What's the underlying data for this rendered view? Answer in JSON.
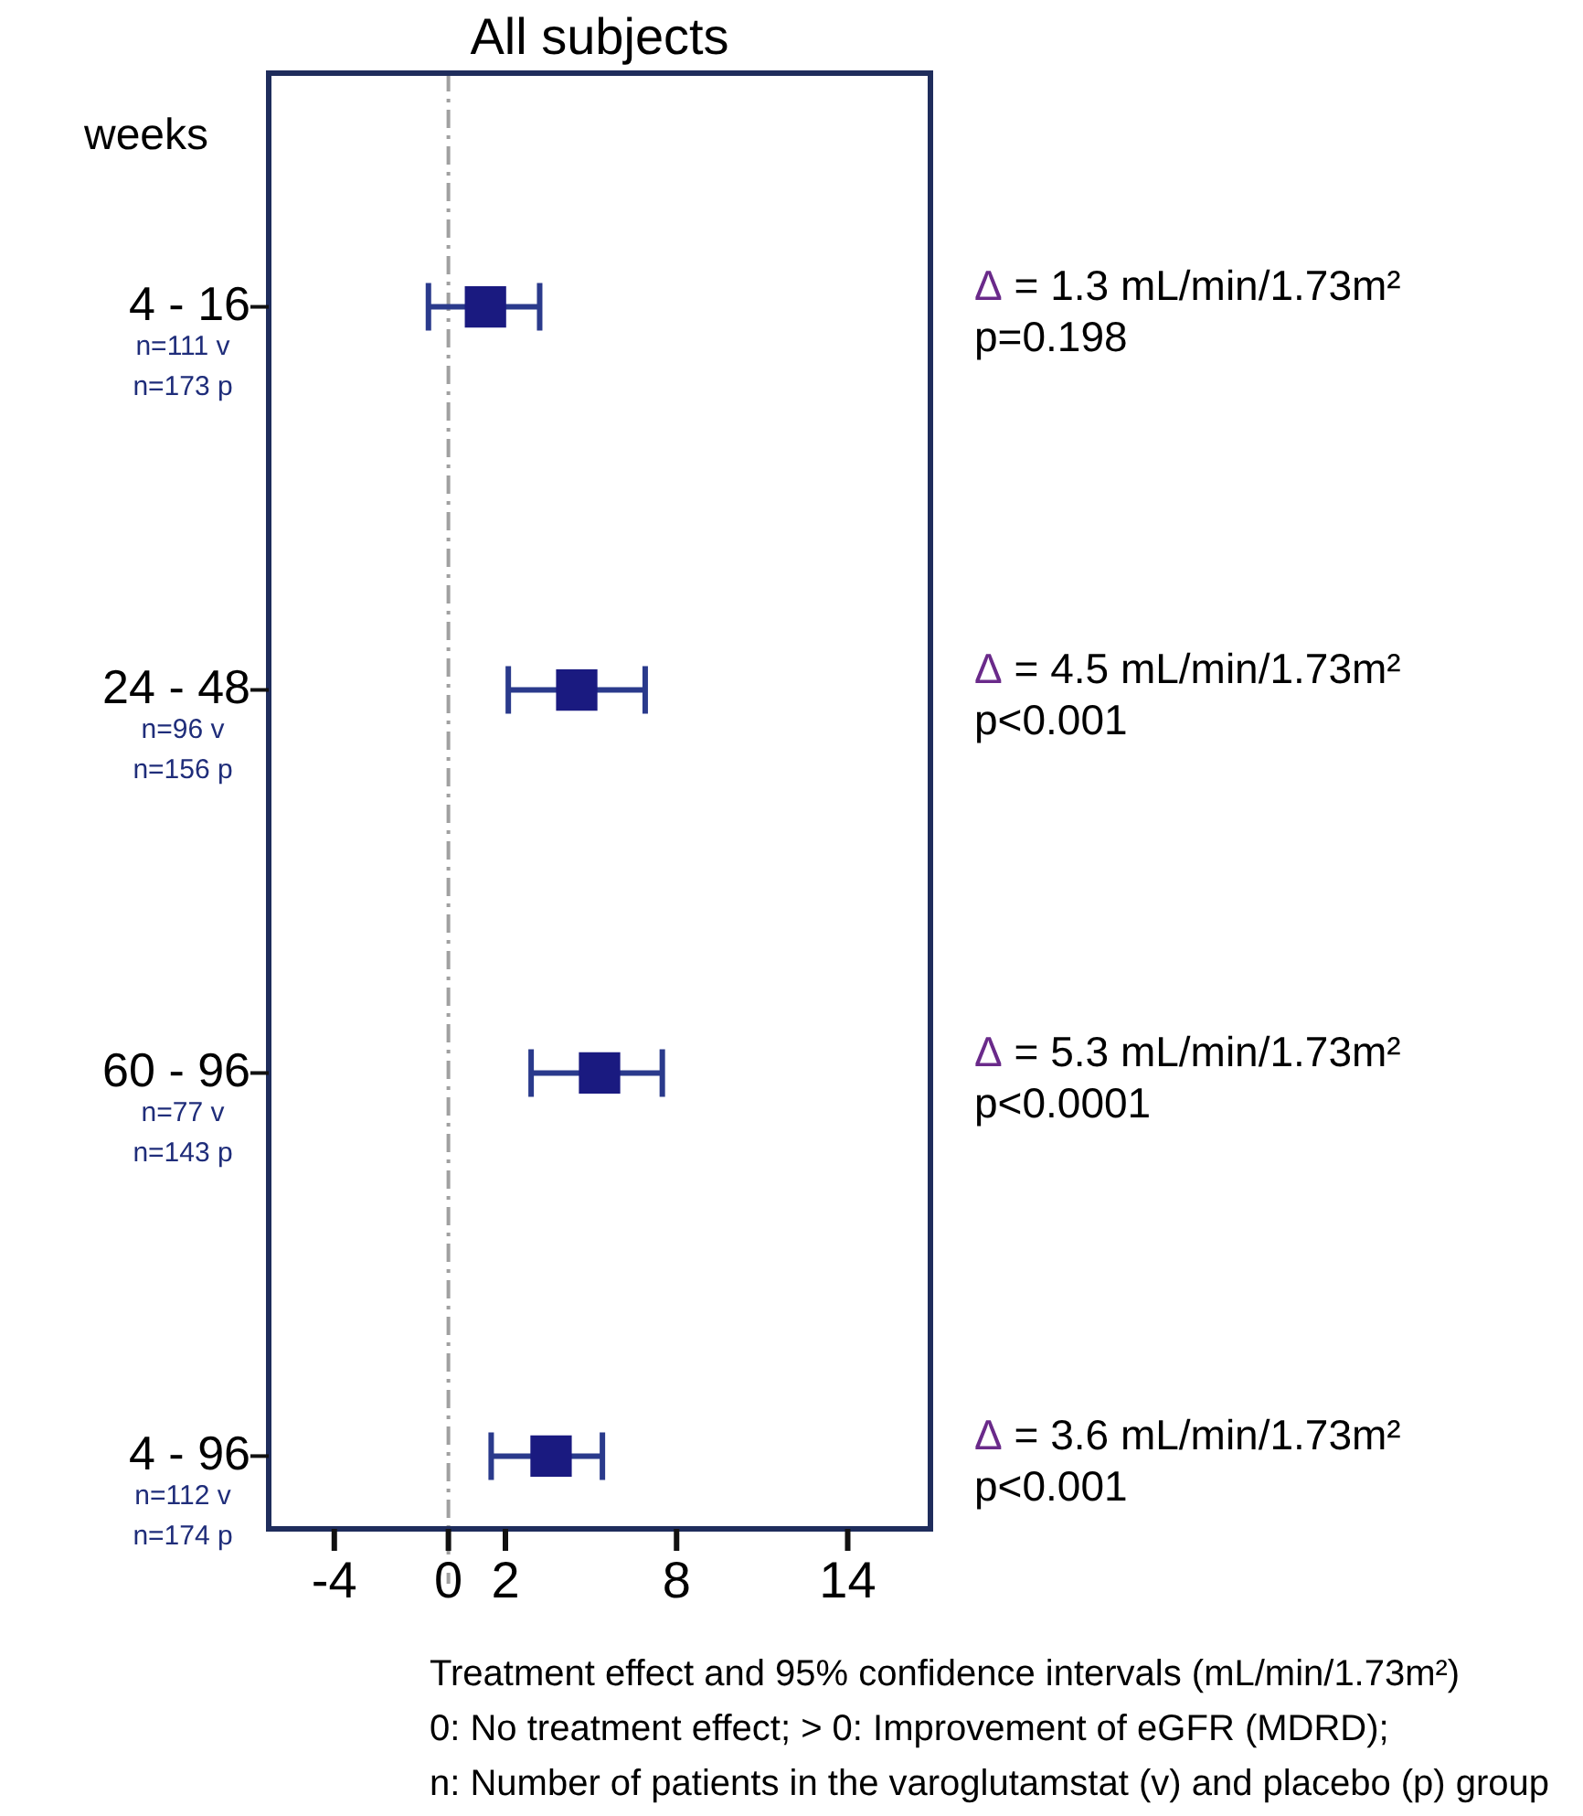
{
  "chart_data": {
    "type": "scatter",
    "orientation": "horizontal",
    "title": "All subjects",
    "ylabel": "weeks",
    "xlabel": "Treatment effect and 95% confidence intervals (mL/min/1.73m²)",
    "categories": [
      "4 - 16\nn=111 v\nn=173 p",
      "24 - 48\nn=96 v\nn=156 p",
      "60 - 96\nn=77 v\nn=143 p",
      "4 - 96\nn=112 v\nn=174 p"
    ],
    "values": [
      1.3,
      4.5,
      5.3,
      3.6
    ],
    "errors": [
      [
        -0.7,
        3.2
      ],
      [
        2.1,
        6.9
      ],
      [
        2.9,
        7.5
      ],
      [
        1.5,
        5.4
      ]
    ],
    "value_labels": [
      "Δ = 1.3 mL/min/1.73m²\np=0.198",
      "Δ = 4.5 mL/min/1.73m²\np<0.001",
      "Δ = 5.3 mL/min/1.73m²\np<0.0001",
      "Δ = 3.6 mL/min/1.73m²\np<0.001"
    ],
    "color": "#1a1a80",
    "marker": "square",
    "legend": false,
    "xlim": [
      -6.3,
      16.9
    ],
    "xticks": [
      -4,
      0,
      2,
      8,
      14
    ],
    "ref_lines": [
      {
        "axis": "x",
        "value": 0,
        "color": "#a0a0a0",
        "line_style": "dashdot"
      }
    ],
    "annotations": [
      "0: No treatment effect; > 0: Improvement of eGFR (MDRD);",
      "n: Number of patients in the varoglutamstat (v) and placebo (p) group"
    ]
  }
}
